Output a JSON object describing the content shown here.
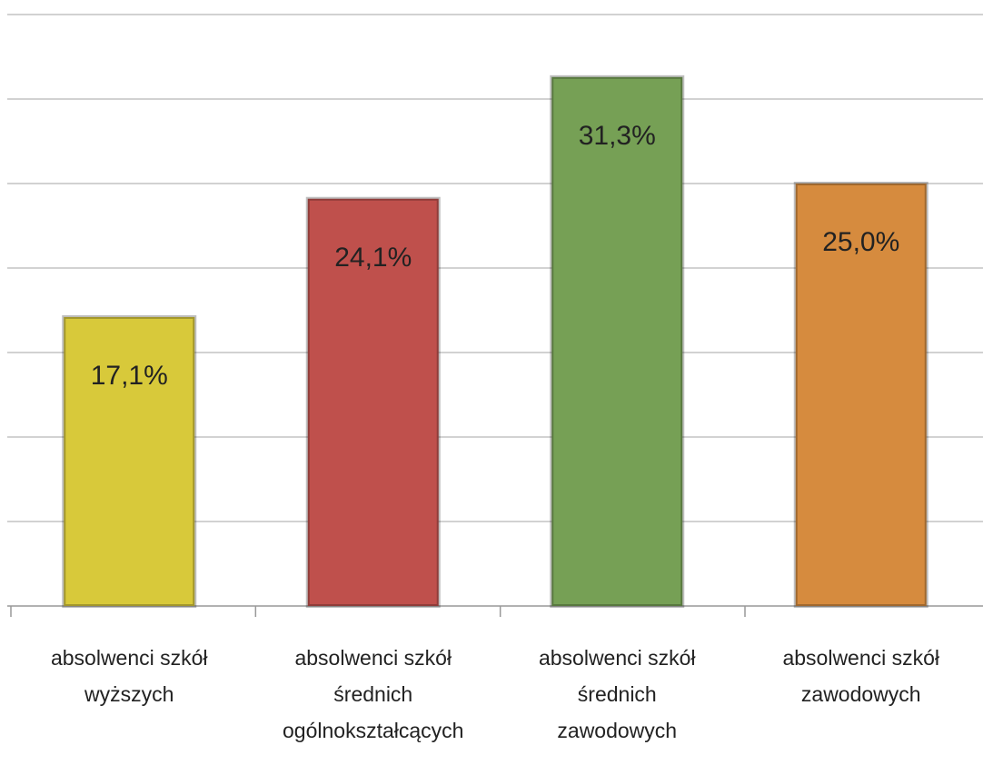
{
  "chart_data": {
    "type": "bar",
    "categories": [
      "absolwenci szkół\nwyższych",
      "absolwenci szkół\nśrednich\nogólnokształcących",
      "absolwenci szkół\nśrednich\nzawodowych",
      "absolwenci szkół\nzawodowych"
    ],
    "series": [
      {
        "values": [
          17.1,
          24.1,
          31.3,
          25.0
        ],
        "value_labels": [
          "17,1%",
          "24,1%",
          "31,3%",
          "25,0%"
        ],
        "colors": [
          "#d8c93a",
          "#bf504c",
          "#76a055",
          "#d68b3e"
        ]
      }
    ],
    "ylim": [
      0,
      35
    ],
    "yticks": [
      0,
      5,
      10,
      15,
      20,
      25,
      30,
      35
    ],
    "grid": true
  }
}
